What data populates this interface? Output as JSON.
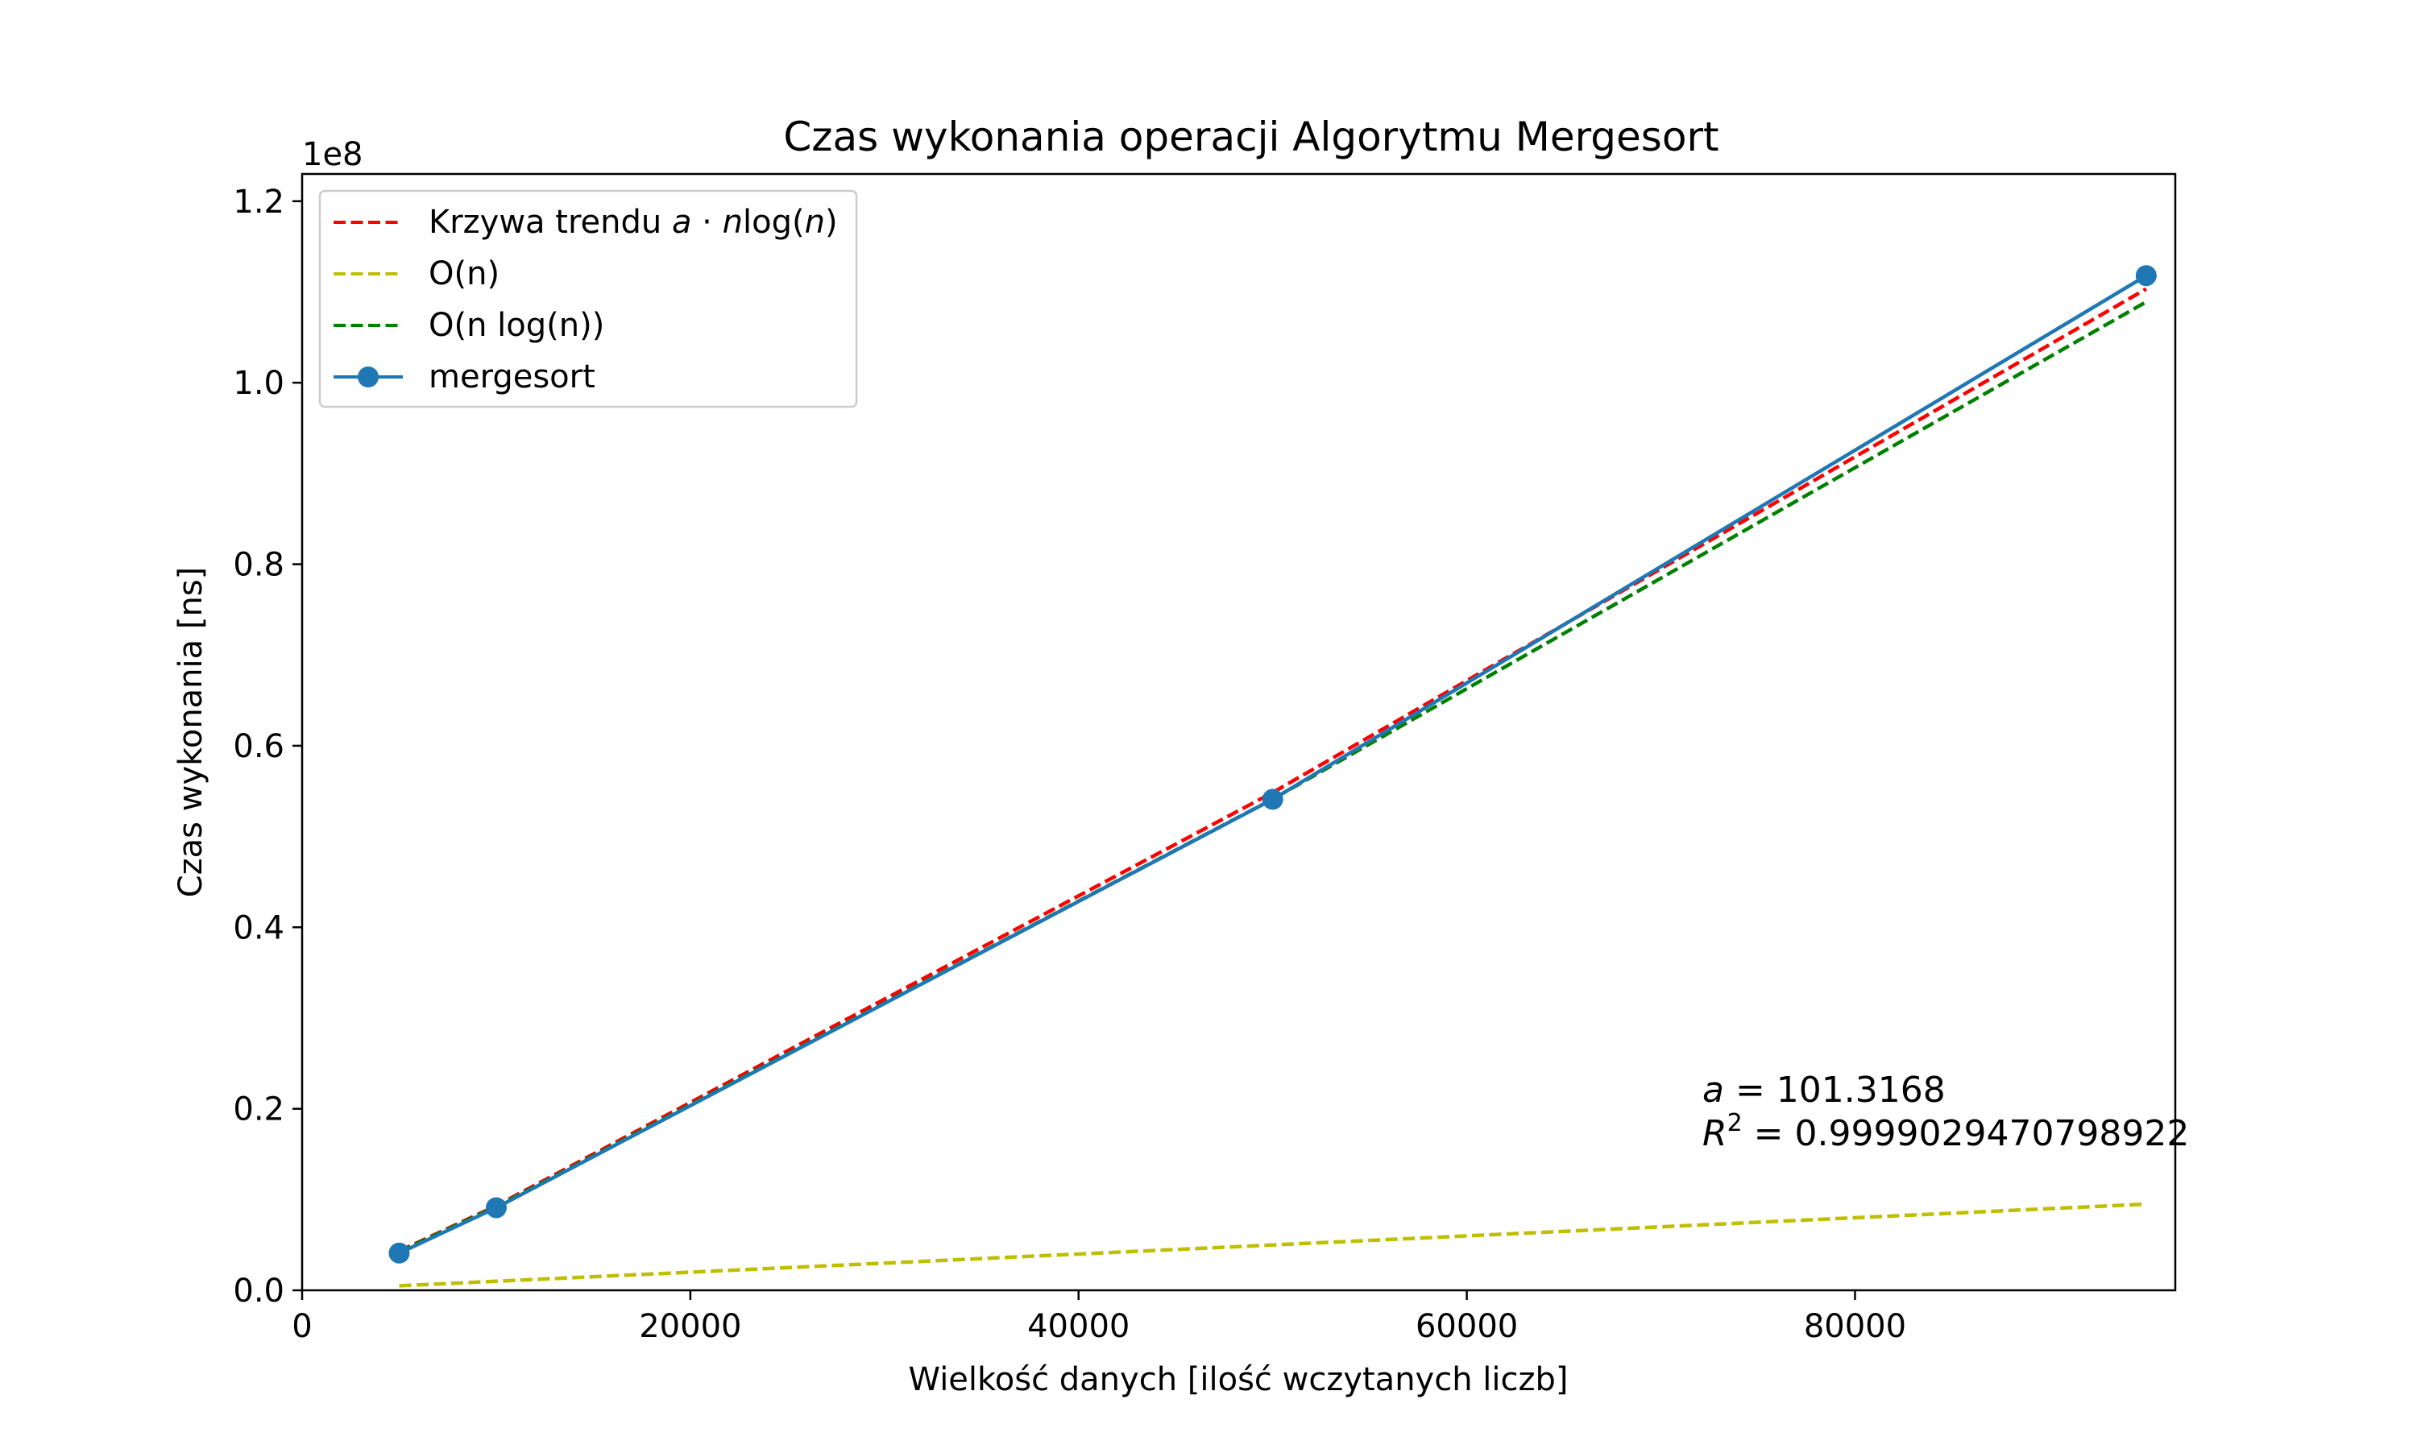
{
  "chart_data": {
    "type": "line",
    "title": "Czas wykonania operacji Algorytmu Mergesort",
    "xlabel": "Wielkość danych [ilość wczytanych liczb]",
    "ylabel": "Czas wykonania [ns]",
    "y_offset_text": "1e8",
    "xlim": [
      0,
      96500
    ],
    "ylim": [
      0,
      1.23
    ],
    "xticks": [
      0,
      20000,
      40000,
      60000,
      80000
    ],
    "xtick_labels": [
      "0",
      "20000",
      "40000",
      "60000",
      "80000"
    ],
    "yticks": [
      0,
      0.2,
      0.4,
      0.6,
      0.8,
      1.0,
      1.2
    ],
    "ytick_labels": [
      "0.0",
      "0.2",
      "0.4",
      "0.6",
      "0.8",
      "1.0",
      "1.2"
    ],
    "grid": false,
    "legend_position": "top-left",
    "series": [
      {
        "name": "Krzywa trendu a·nlog(n)",
        "style": "dashed",
        "color": "#ff0000",
        "x": [
          5000,
          10000,
          50000,
          95000
        ],
        "y": [
          0.0432,
          0.0931,
          0.5484,
          1.1034
        ]
      },
      {
        "name": "O(n)",
        "style": "dashed",
        "color": "#bfbf00",
        "x": [
          5000,
          95000
        ],
        "y": [
          0.005,
          0.095
        ]
      },
      {
        "name": "O(n log(n))",
        "style": "dashed",
        "color": "#008000",
        "x": [
          5000,
          10000,
          50000,
          95000
        ],
        "y": [
          0.0426,
          0.0921,
          0.5412,
          1.0891
        ]
      },
      {
        "name": "mergesort",
        "style": "solid-markers",
        "color": "#1f77b4",
        "x": [
          5000,
          10000,
          50000,
          95000
        ],
        "y": [
          0.041,
          0.091,
          0.541,
          1.118
        ]
      }
    ],
    "legend": {
      "entries": [
        {
          "prefix": "Krzywa trendu ",
          "math_a": "a",
          "math_dot": " · ",
          "math_n": "n",
          "math_log": "log(",
          "math_n2": "n",
          "math_close": ")"
        },
        {
          "label": "O(n)"
        },
        {
          "label": "O(n log(n))"
        },
        {
          "label": "mergesort"
        }
      ]
    },
    "annotation": {
      "a_symbol": "a",
      "a_value": " = 101.3168",
      "r_symbol": "R",
      "r_sup": "2",
      "r_value": " = 0.9999029470798922"
    }
  }
}
